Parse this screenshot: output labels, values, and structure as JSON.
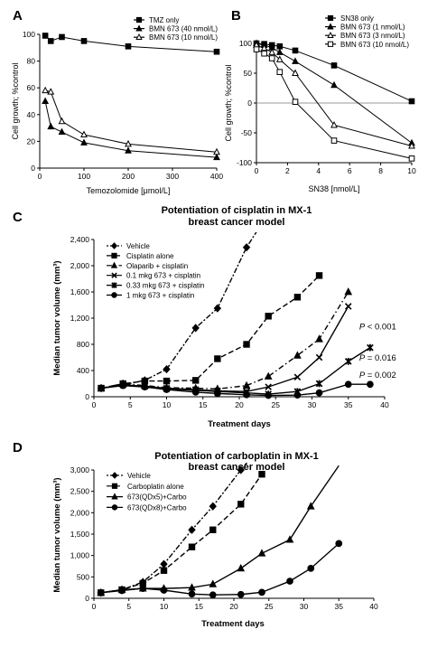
{
  "figure_panels": [
    "A",
    "B",
    "C",
    "D"
  ],
  "chart_data": [
    {
      "panel": "A",
      "type": "line",
      "title": "",
      "xlabel": "Temozolomide [μmol/L]",
      "ylabel": "Cell growth; %control",
      "xlim": [
        0,
        400
      ],
      "ylim": [
        0,
        100
      ],
      "xticks": [
        0,
        100,
        200,
        300,
        400
      ],
      "yticks": [
        0,
        20,
        40,
        60,
        80,
        100
      ],
      "legend_position": "top-right",
      "series": [
        {
          "name": "TMZ only",
          "marker": "square-filled",
          "dash": "solid",
          "x": [
            12.5,
            25,
            50,
            100,
            200,
            400
          ],
          "y": [
            99,
            95,
            98,
            95,
            91,
            87
          ]
        },
        {
          "name": "BMN 673 (40 nmol/L)",
          "marker": "triangle-filled",
          "dash": "solid",
          "x": [
            12.5,
            25,
            50,
            100,
            200,
            400
          ],
          "y": [
            50,
            31,
            27,
            19,
            13,
            8
          ]
        },
        {
          "name": "BMN 673 (10 nmol/L)",
          "marker": "triangle-open",
          "dash": "solid",
          "x": [
            12.5,
            25,
            50,
            100,
            200,
            400
          ],
          "y": [
            58,
            57,
            35,
            25,
            18,
            12
          ]
        }
      ]
    },
    {
      "panel": "B",
      "type": "line",
      "title": "",
      "xlabel": "SN38 [nmol/L]",
      "ylabel": "Cell growth; %control",
      "xlim": [
        0,
        10
      ],
      "ylim": [
        -100,
        100
      ],
      "xticks": [
        0,
        2,
        4,
        6,
        8,
        10
      ],
      "yticks": [
        -100,
        -50,
        0,
        50,
        100
      ],
      "legend_position": "top-right",
      "series": [
        {
          "name": "SN38 only",
          "marker": "square-filled",
          "dash": "solid",
          "x": [
            0,
            0.5,
            1,
            1.5,
            2.5,
            5,
            10
          ],
          "y": [
            100,
            99,
            97,
            95,
            88,
            63,
            3
          ]
        },
        {
          "name": "BMN 673 (1 nmol/L)",
          "marker": "triangle-filled",
          "dash": "solid",
          "x": [
            0,
            0.5,
            1,
            1.5,
            2.5,
            5,
            10
          ],
          "y": [
            100,
            97,
            93,
            85,
            70,
            30,
            -67
          ]
        },
        {
          "name": "BMN 673 (3 nmol/L)",
          "marker": "triangle-open",
          "dash": "solid",
          "x": [
            0,
            0.5,
            1,
            1.5,
            2.5,
            5,
            10
          ],
          "y": [
            97,
            92,
            85,
            73,
            50,
            -37,
            -72
          ]
        },
        {
          "name": "BMN 673 (10 nmol/L)",
          "marker": "square-open",
          "dash": "solid",
          "x": [
            0,
            0.5,
            1,
            1.5,
            2.5,
            5,
            10
          ],
          "y": [
            90,
            83,
            75,
            52,
            2,
            -63,
            -93
          ]
        }
      ]
    },
    {
      "panel": "C",
      "type": "line",
      "title": "Potentiation of cisplatin in MX-1 breast cancer model",
      "title_lines": [
        "Potentiation of cisplatin in MX-1",
        "breast cancer model"
      ],
      "xlabel": "Treatment days",
      "ylabel": "Median tumor volume (mm³)",
      "xlim": [
        0,
        40
      ],
      "ylim": [
        0,
        2400
      ],
      "xticks": [
        0,
        5,
        10,
        15,
        20,
        25,
        30,
        35,
        40
      ],
      "yticks": [
        0,
        400,
        800,
        1200,
        1600,
        2000,
        2400
      ],
      "ytick_labels": [
        "0",
        "400",
        "800",
        "1,200",
        "1,600",
        "2,000",
        "2,400"
      ],
      "legend_position": "top-left",
      "annotations": [
        {
          "text": "P < 0.001",
          "x": 36.5,
          "y": 1030
        },
        {
          "text": "P = 0.016",
          "x": 36.5,
          "y": 550
        },
        {
          "text": "P = 0.002",
          "x": 36.5,
          "y": 290
        }
      ],
      "series": [
        {
          "name": "Vehicle",
          "marker": "diamond-filled",
          "dash": "dot-dash",
          "x": [
            1,
            4,
            7,
            10,
            14,
            17,
            21,
            24
          ],
          "y": [
            130,
            180,
            250,
            420,
            1050,
            1350,
            2280,
            2800
          ]
        },
        {
          "name": "Cisplatin alone",
          "marker": "square-filled",
          "dash": "dash",
          "x": [
            1,
            4,
            7,
            10,
            14,
            17,
            21,
            24,
            28,
            31
          ],
          "y": [
            130,
            200,
            240,
            240,
            250,
            580,
            800,
            1230,
            1520,
            1850
          ]
        },
        {
          "name": "Olaparib + cisplatin",
          "marker": "triangle-filled",
          "dash": "dash-dot",
          "x": [
            1,
            4,
            7,
            10,
            14,
            17,
            21,
            24,
            28,
            31,
            35
          ],
          "y": [
            130,
            200,
            170,
            140,
            130,
            120,
            170,
            310,
            630,
            880,
            1600
          ]
        },
        {
          "name": "0.1 mkg 673 + cisplatin",
          "marker": "x",
          "dash": "solid",
          "x": [
            1,
            4,
            7,
            10,
            14,
            17,
            21,
            24,
            28,
            31,
            35
          ],
          "y": [
            130,
            180,
            160,
            130,
            110,
            90,
            80,
            150,
            300,
            600,
            1380
          ]
        },
        {
          "name": "0.33 mkg 673 + cisplatin",
          "marker": "star",
          "dash": "solid",
          "x": [
            1,
            4,
            7,
            10,
            14,
            17,
            21,
            24,
            28,
            31,
            35,
            38
          ],
          "y": [
            130,
            180,
            160,
            120,
            100,
            80,
            60,
            40,
            80,
            200,
            540,
            750
          ]
        },
        {
          "name": "1 mkg 673 + cisplatin",
          "marker": "circle-filled",
          "dash": "solid",
          "x": [
            1,
            4,
            7,
            10,
            14,
            17,
            21,
            24,
            28,
            31,
            35,
            38
          ],
          "y": [
            130,
            170,
            150,
            110,
            70,
            50,
            30,
            20,
            25,
            60,
            190,
            190
          ]
        }
      ]
    },
    {
      "panel": "D",
      "type": "line",
      "title": "Potentiation of carboplatin in MX-1 breast cancer model",
      "title_lines": [
        "Potentiation of carboplatin in MX-1",
        "breast cancer model"
      ],
      "xlabel": "Treatment days",
      "ylabel": "Median tumor volume (mm³)",
      "xlim": [
        0,
        40
      ],
      "ylim": [
        0,
        3000
      ],
      "xticks": [
        0,
        5,
        10,
        15,
        20,
        25,
        30,
        35,
        40
      ],
      "yticks": [
        0,
        500,
        1000,
        1500,
        2000,
        2500,
        3000
      ],
      "ytick_labels": [
        "0",
        "500",
        "1,000",
        "1,500",
        "2,000",
        "2,500",
        "3,000"
      ],
      "legend_position": "top-left",
      "series": [
        {
          "name": "Vehicle",
          "marker": "diamond-filled",
          "dash": "dot-dash",
          "x": [
            1,
            4,
            7,
            10,
            14,
            17,
            21,
            24
          ],
          "y": [
            130,
            200,
            380,
            800,
            1600,
            2150,
            3000,
            3600
          ]
        },
        {
          "name": "Carboplatin alone",
          "marker": "square-filled",
          "dash": "dash",
          "x": [
            1,
            4,
            7,
            10,
            14,
            17,
            21,
            24
          ],
          "y": [
            130,
            200,
            350,
            650,
            1200,
            1600,
            2200,
            2900
          ]
        },
        {
          "name": "673(QDx5)+Carbo",
          "marker": "triangle-filled",
          "dash": "solid",
          "x": [
            1,
            4,
            7,
            10,
            14,
            17,
            21,
            24,
            28,
            31,
            35
          ],
          "y": [
            130,
            200,
            230,
            230,
            250,
            330,
            700,
            1050,
            1370,
            2150,
            3100
          ]
        },
        {
          "name": "673(QDx8)+Carbo",
          "marker": "circle-filled",
          "dash": "solid",
          "x": [
            1,
            4,
            7,
            10,
            14,
            17,
            21,
            24,
            28,
            31,
            35
          ],
          "y": [
            130,
            180,
            230,
            190,
            100,
            80,
            90,
            140,
            400,
            700,
            1280
          ]
        }
      ]
    }
  ]
}
